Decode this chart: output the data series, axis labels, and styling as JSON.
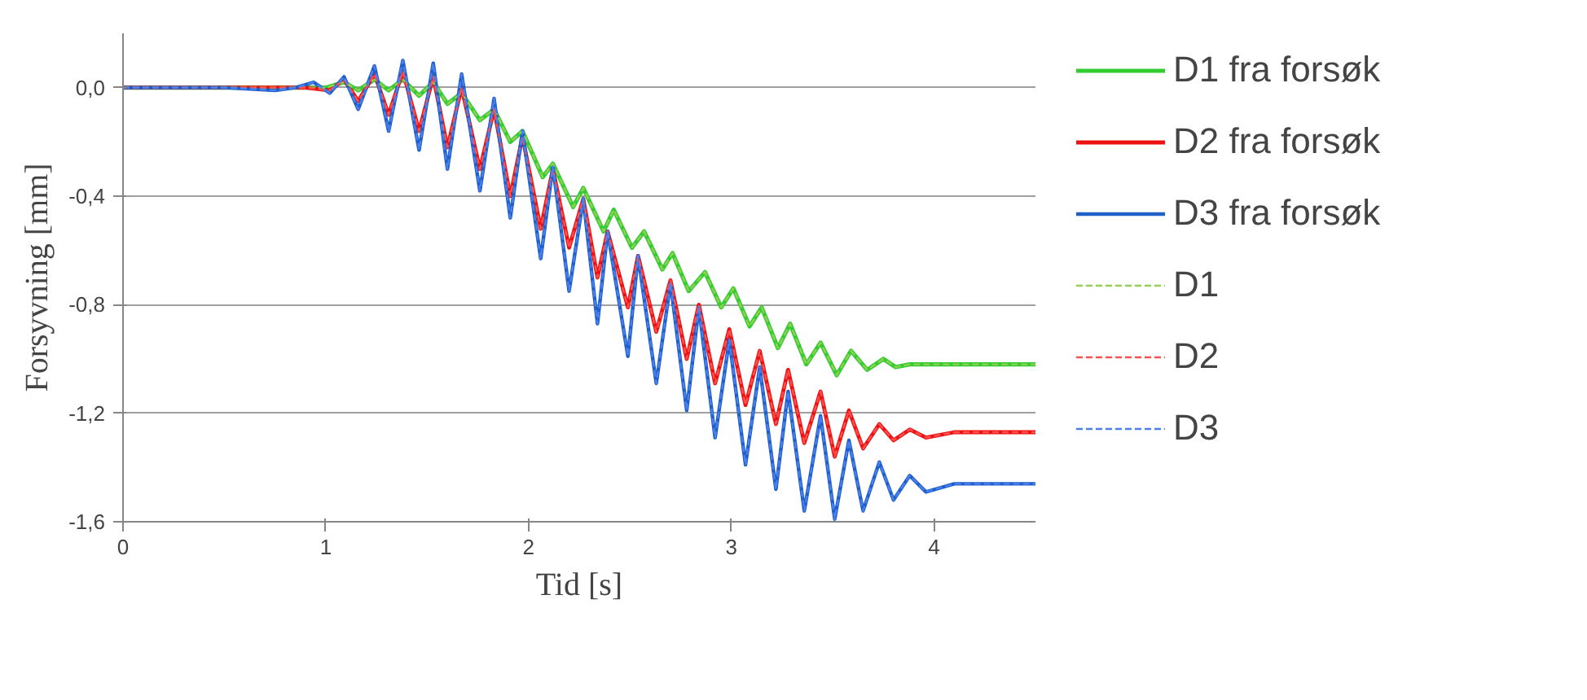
{
  "chart_data": {
    "type": "line",
    "xlabel": "Tid [s]",
    "ylabel": "Forsyvning [mm]",
    "xlim": [
      0,
      4.5
    ],
    "xticks": [
      0,
      1,
      2,
      3,
      4
    ],
    "ylim": [
      -1.6,
      0.2
    ],
    "yticks": [
      {
        "value": -1.6,
        "label": "-1,6"
      },
      {
        "value": -1.2,
        "label": "-1,2"
      },
      {
        "value": -0.8,
        "label": "-0,8"
      },
      {
        "value": -0.4,
        "label": "-0,4"
      },
      {
        "value": 0,
        "label": "0,0"
      }
    ],
    "grid": "y",
    "legend": "right",
    "marker": "none",
    "series": [
      {
        "name": "D1 fra forsøk",
        "color": "#33cc33",
        "line_style": "solid",
        "x": [
          0,
          1.0,
          1.09,
          1.16,
          1.24,
          1.31,
          1.38,
          1.46,
          1.53,
          1.6,
          1.67,
          1.76,
          1.83,
          1.91,
          1.97,
          2.07,
          2.12,
          2.22,
          2.27,
          2.37,
          2.42,
          2.51,
          2.57,
          2.66,
          2.71,
          2.79,
          2.87,
          2.95,
          3.01,
          3.09,
          3.15,
          3.23,
          3.29,
          3.37,
          3.44,
          3.52,
          3.59,
          3.67,
          3.75,
          3.81,
          3.88,
          4.5
        ],
        "values": [
          0,
          0,
          0.02,
          -0.01,
          0.03,
          -0.01,
          0.03,
          -0.03,
          0.02,
          -0.06,
          -0.02,
          -0.12,
          -0.08,
          -0.2,
          -0.16,
          -0.33,
          -0.28,
          -0.44,
          -0.37,
          -0.53,
          -0.45,
          -0.59,
          -0.53,
          -0.67,
          -0.61,
          -0.75,
          -0.68,
          -0.81,
          -0.74,
          -0.88,
          -0.81,
          -0.96,
          -0.87,
          -1.02,
          -0.94,
          -1.06,
          -0.97,
          -1.04,
          -1.0,
          -1.03,
          -1.02,
          -1.02
        ]
      },
      {
        "name": "D2 fra forsøk",
        "color": "#ee1111",
        "line_style": "solid",
        "x": [
          0,
          0.9,
          1.02,
          1.09,
          1.16,
          1.24,
          1.31,
          1.38,
          1.46,
          1.53,
          1.6,
          1.67,
          1.76,
          1.83,
          1.91,
          1.97,
          2.06,
          2.12,
          2.2,
          2.27,
          2.34,
          2.39,
          2.49,
          2.54,
          2.63,
          2.7,
          2.78,
          2.84,
          2.92,
          2.99,
          3.07,
          3.14,
          3.22,
          3.28,
          3.36,
          3.44,
          3.51,
          3.58,
          3.65,
          3.73,
          3.8,
          3.88,
          3.96,
          4.1,
          4.5
        ],
        "values": [
          0,
          0,
          -0.01,
          0.03,
          -0.05,
          0.05,
          -0.1,
          0.06,
          -0.16,
          0.04,
          -0.22,
          0,
          -0.3,
          -0.08,
          -0.4,
          -0.18,
          -0.52,
          -0.3,
          -0.59,
          -0.41,
          -0.7,
          -0.53,
          -0.81,
          -0.62,
          -0.9,
          -0.71,
          -1.0,
          -0.8,
          -1.09,
          -0.89,
          -1.17,
          -0.97,
          -1.24,
          -1.04,
          -1.31,
          -1.12,
          -1.36,
          -1.19,
          -1.33,
          -1.24,
          -1.3,
          -1.26,
          -1.29,
          -1.27,
          -1.27
        ]
      },
      {
        "name": "D3 fra forsøk",
        "color": "#1f5fc8",
        "line_style": "solid",
        "x": [
          0,
          0.5,
          0.75,
          0.85,
          0.94,
          1.02,
          1.09,
          1.16,
          1.24,
          1.31,
          1.38,
          1.46,
          1.53,
          1.6,
          1.67,
          1.76,
          1.83,
          1.91,
          1.97,
          2.06,
          2.12,
          2.2,
          2.27,
          2.34,
          2.39,
          2.49,
          2.54,
          2.63,
          2.7,
          2.78,
          2.84,
          2.92,
          2.99,
          3.07,
          3.14,
          3.22,
          3.28,
          3.36,
          3.44,
          3.51,
          3.58,
          3.65,
          3.73,
          3.8,
          3.88,
          3.96,
          4.1,
          4.5
        ],
        "values": [
          0,
          0,
          -0.01,
          0,
          0.02,
          -0.02,
          0.04,
          -0.08,
          0.08,
          -0.16,
          0.1,
          -0.23,
          0.09,
          -0.3,
          0.05,
          -0.38,
          -0.04,
          -0.48,
          -0.16,
          -0.63,
          -0.29,
          -0.75,
          -0.41,
          -0.87,
          -0.53,
          -0.99,
          -0.62,
          -1.09,
          -0.72,
          -1.19,
          -0.81,
          -1.29,
          -0.93,
          -1.39,
          -1.03,
          -1.48,
          -1.12,
          -1.56,
          -1.21,
          -1.59,
          -1.3,
          -1.56,
          -1.38,
          -1.52,
          -1.43,
          -1.49,
          -1.46,
          -1.46
        ]
      },
      {
        "name": "D1",
        "color": "#92d050",
        "line_style": "dashed",
        "x": [
          0,
          1.0,
          1.09,
          1.16,
          1.24,
          1.31,
          1.38,
          1.46,
          1.53,
          1.6,
          1.67,
          1.76,
          1.83,
          1.91,
          1.97,
          2.07,
          2.12,
          2.22,
          2.27,
          2.37,
          2.42,
          2.51,
          2.57,
          2.66,
          2.71,
          2.79,
          2.87,
          2.95,
          3.01,
          3.09,
          3.15,
          3.23,
          3.29,
          3.37,
          3.44,
          3.52,
          3.59,
          3.67,
          3.75,
          3.81,
          3.88,
          4.5
        ],
        "values": [
          0,
          0,
          0.02,
          -0.01,
          0.03,
          -0.01,
          0.03,
          -0.03,
          0.02,
          -0.06,
          -0.02,
          -0.12,
          -0.08,
          -0.2,
          -0.16,
          -0.33,
          -0.28,
          -0.44,
          -0.37,
          -0.53,
          -0.45,
          -0.59,
          -0.53,
          -0.67,
          -0.61,
          -0.75,
          -0.68,
          -0.81,
          -0.74,
          -0.88,
          -0.81,
          -0.96,
          -0.87,
          -1.02,
          -0.94,
          -1.06,
          -0.97,
          -1.04,
          -1.0,
          -1.03,
          -1.02,
          -1.02
        ]
      },
      {
        "name": "D2",
        "color": "#ff5050",
        "line_style": "dashed",
        "x": [
          0,
          0.9,
          1.02,
          1.09,
          1.16,
          1.24,
          1.31,
          1.38,
          1.46,
          1.53,
          1.6,
          1.67,
          1.76,
          1.83,
          1.91,
          1.97,
          2.06,
          2.12,
          2.2,
          2.27,
          2.34,
          2.39,
          2.49,
          2.54,
          2.63,
          2.7,
          2.78,
          2.84,
          2.92,
          2.99,
          3.07,
          3.14,
          3.22,
          3.28,
          3.36,
          3.44,
          3.51,
          3.58,
          3.65,
          3.73,
          3.8,
          3.88,
          3.96,
          4.1,
          4.5
        ],
        "values": [
          0,
          0,
          -0.01,
          0.03,
          -0.05,
          0.05,
          -0.1,
          0.06,
          -0.16,
          0.04,
          -0.22,
          0,
          -0.3,
          -0.08,
          -0.4,
          -0.18,
          -0.52,
          -0.3,
          -0.59,
          -0.41,
          -0.7,
          -0.53,
          -0.81,
          -0.62,
          -0.9,
          -0.71,
          -1.0,
          -0.8,
          -1.09,
          -0.89,
          -1.17,
          -0.97,
          -1.24,
          -1.04,
          -1.31,
          -1.12,
          -1.36,
          -1.19,
          -1.33,
          -1.24,
          -1.3,
          -1.26,
          -1.29,
          -1.27,
          -1.27
        ]
      },
      {
        "name": "D3",
        "color": "#4a7ff0",
        "line_style": "dashed",
        "x": [
          0,
          0.5,
          0.75,
          0.85,
          0.94,
          1.02,
          1.09,
          1.16,
          1.24,
          1.31,
          1.38,
          1.46,
          1.53,
          1.6,
          1.67,
          1.76,
          1.83,
          1.91,
          1.97,
          2.06,
          2.12,
          2.2,
          2.27,
          2.34,
          2.39,
          2.49,
          2.54,
          2.63,
          2.7,
          2.78,
          2.84,
          2.92,
          2.99,
          3.07,
          3.14,
          3.22,
          3.28,
          3.36,
          3.44,
          3.51,
          3.58,
          3.65,
          3.73,
          3.8,
          3.88,
          3.96,
          4.1,
          4.5
        ],
        "values": [
          0,
          0,
          -0.01,
          0,
          0.02,
          -0.02,
          0.04,
          -0.08,
          0.08,
          -0.16,
          0.1,
          -0.23,
          0.09,
          -0.3,
          0.05,
          -0.38,
          -0.04,
          -0.48,
          -0.16,
          -0.63,
          -0.29,
          -0.75,
          -0.41,
          -0.87,
          -0.53,
          -0.99,
          -0.62,
          -1.09,
          -0.72,
          -1.19,
          -0.81,
          -1.29,
          -0.93,
          -1.39,
          -1.03,
          -1.48,
          -1.12,
          -1.56,
          -1.21,
          -1.59,
          -1.3,
          -1.56,
          -1.38,
          -1.52,
          -1.43,
          -1.49,
          -1.46,
          -1.46
        ]
      }
    ]
  }
}
